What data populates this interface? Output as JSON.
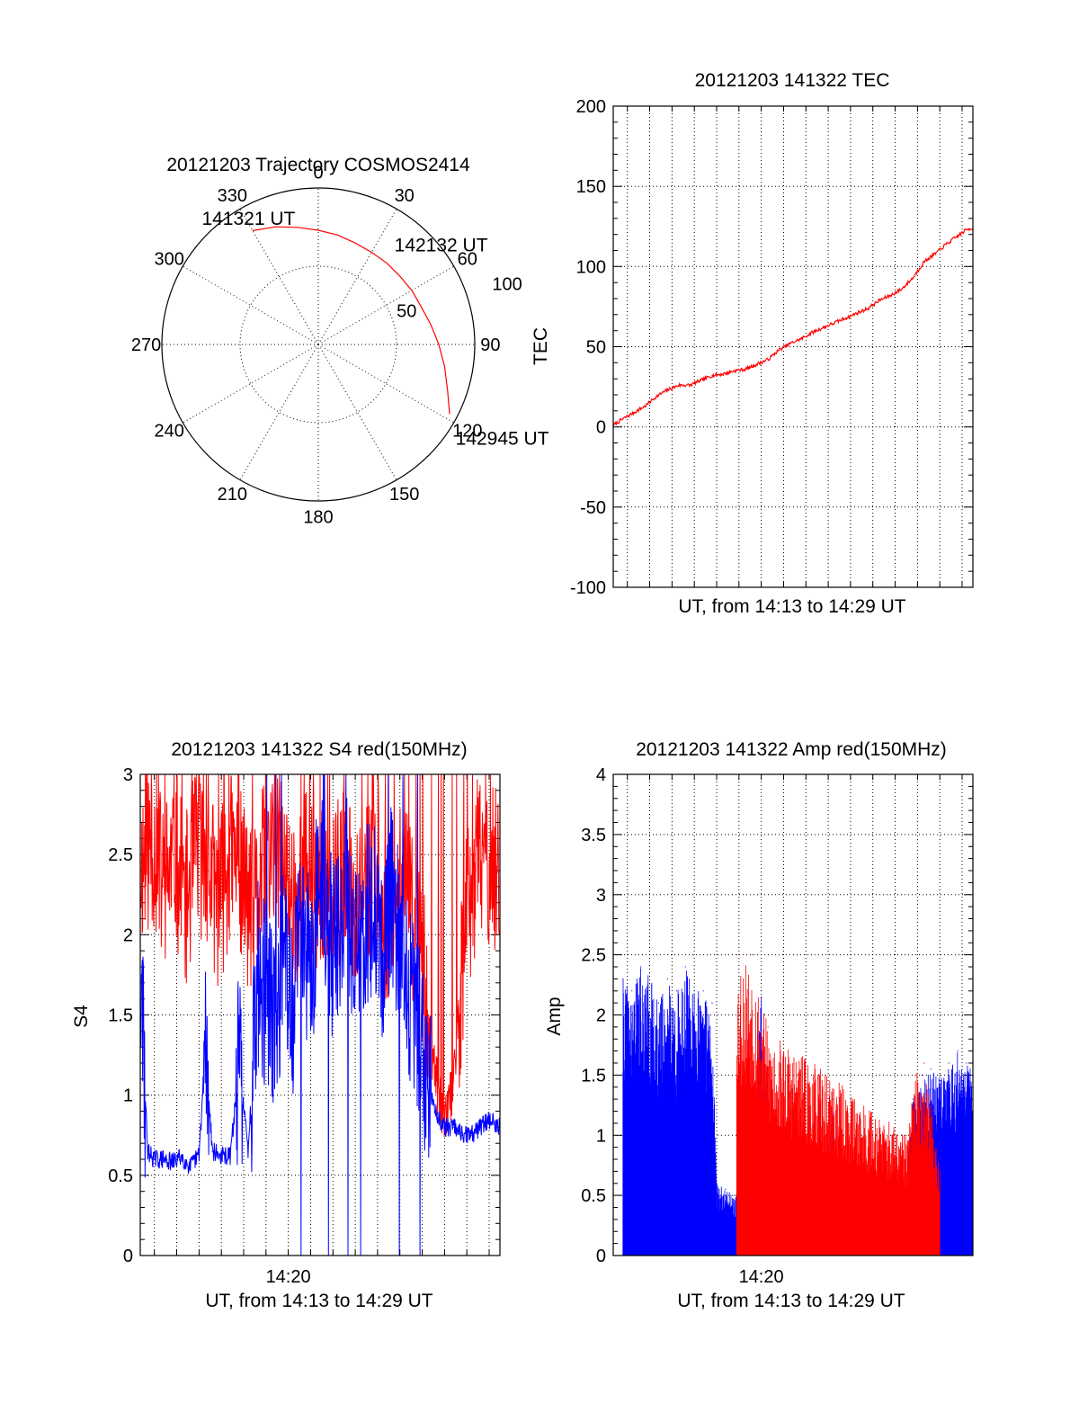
{
  "chart_data": [
    {
      "type": "polar",
      "title": "20121203 Trajectory COSMOS2414",
      "angle_labels": [
        "0",
        "30",
        "60",
        "90",
        "120",
        "150",
        "180",
        "210",
        "240",
        "270",
        "300",
        "330"
      ],
      "radial_ticks": [
        {
          "value": 50,
          "label": "50"
        },
        {
          "value": 100,
          "label": "100"
        }
      ],
      "rlim": [
        0,
        100
      ],
      "direction": "clockwise",
      "zero_at": "top",
      "grid": true,
      "series": [
        {
          "color": "#ff0000",
          "azimuth": [
            330,
            340,
            350,
            0,
            10,
            20,
            30,
            40,
            50,
            60,
            70,
            80,
            90,
            100,
            110,
            118
          ],
          "radius": [
            84,
            80,
            76,
            73,
            71,
            69,
            68,
            68,
            68,
            69,
            70,
            73,
            77,
            82,
            88,
            95
          ]
        }
      ],
      "annotations": [
        {
          "text": "141321 UT",
          "azimuth": 331,
          "radius": 92
        },
        {
          "text": "142132 UT",
          "azimuth": 51,
          "radius": 101
        },
        {
          "text": "142945 UT",
          "azimuth": 117,
          "radius": 132
        }
      ]
    },
    {
      "type": "line",
      "title": "20121203 141322 TEC",
      "xlabel": "UT, from 14:13 to 14:29 UT",
      "ylabel": "TEC",
      "xlim": [
        13.3667,
        29.4833
      ],
      "ylim": [
        -100,
        200
      ],
      "yticks": [
        -100,
        -50,
        0,
        50,
        100,
        150,
        200
      ],
      "ytick_labels": [
        "-100",
        "-50",
        "0",
        "50",
        "100",
        "150",
        "200"
      ],
      "grid": true,
      "series": [
        {
          "color": "#ff0000",
          "x": [
            13.37,
            13.8,
            14.3,
            14.8,
            15.3,
            15.8,
            16.3,
            16.8,
            17.3,
            17.8,
            18.3,
            18.8,
            19.3,
            19.8,
            20.3,
            20.8,
            21.3,
            21.8,
            22.3,
            22.8,
            23.3,
            23.8,
            24.3,
            24.8,
            25.3,
            25.8,
            26.3,
            26.8,
            27.3,
            27.8,
            28.3,
            28.8,
            29.2,
            29.48
          ],
          "y": [
            1,
            5,
            9,
            13,
            19,
            23,
            26,
            26,
            29,
            32,
            33,
            35,
            36,
            39,
            42,
            48,
            52,
            55,
            59,
            62,
            65,
            68,
            71,
            74,
            79,
            82,
            86,
            93,
            103,
            108,
            114,
            119,
            123,
            124
          ]
        }
      ]
    },
    {
      "type": "line",
      "title": "20121203 141322 S4 red(150MHz)",
      "xlabel": "UT, from 14:13 to 14:29 UT",
      "ylabel": "S4",
      "xlim": [
        13.3667,
        29.4833
      ],
      "ylim": [
        0,
        3
      ],
      "xticks": [
        20
      ],
      "xtick_labels": [
        "14:20"
      ],
      "yticks": [
        0,
        0.5,
        1,
        1.5,
        2,
        2.5,
        3
      ],
      "ytick_labels": [
        "0",
        "0.5",
        "1",
        "1.5",
        "2",
        "2.5",
        "3"
      ],
      "grid": true,
      "series": [
        {
          "color": "#ff0000",
          "x": [
            13.4,
            13.9,
            14.4,
            14.9,
            15.4,
            15.9,
            16.4,
            16.9,
            17.4,
            17.9,
            18.4,
            18.9,
            19.4,
            19.9,
            20.4,
            20.9,
            21.4,
            21.9,
            22.4,
            22.9,
            23.4,
            23.9,
            24.4,
            24.9,
            25.4,
            25.9,
            26.2,
            26.5,
            26.8,
            27.1,
            27.4,
            27.7,
            28.0,
            28.4,
            28.8,
            29.2,
            29.45
          ],
          "y": [
            2.45,
            2.6,
            2.3,
            2.5,
            2.2,
            2.55,
            2.4,
            2.2,
            2.5,
            2.35,
            2.1,
            2.4,
            2.6,
            2.3,
            2.2,
            2.45,
            2.3,
            2.1,
            2.4,
            2.2,
            2.35,
            2.25,
            2.1,
            2.3,
            2.2,
            1.95,
            1.6,
            1.2,
            0.95,
            0.85,
            1.1,
            1.6,
            2.1,
            2.4,
            2.55,
            2.35,
            2.5
          ]
        },
        {
          "color": "#0000ff",
          "x": [
            13.4,
            13.7,
            14.0,
            14.4,
            14.8,
            15.2,
            15.6,
            16.0,
            16.3,
            16.6,
            17.0,
            17.4,
            17.8,
            18.2,
            18.6,
            19.0,
            19.4,
            19.8,
            20.2,
            20.6,
            21.0,
            21.4,
            21.8,
            22.2,
            22.6,
            23.0,
            23.4,
            23.8,
            24.2,
            24.6,
            25.0,
            25.4,
            25.8,
            26.2,
            26.6,
            27.0,
            27.4,
            27.8,
            28.2,
            28.6,
            29.0,
            29.45
          ],
          "y": [
            1.6,
            0.65,
            0.6,
            0.6,
            0.58,
            0.62,
            0.55,
            0.63,
            1.3,
            0.65,
            0.62,
            0.62,
            1.2,
            0.65,
            1.8,
            1.6,
            1.4,
            1.9,
            1.5,
            2.2,
            1.7,
            2.5,
            1.9,
            2.0,
            2.3,
            1.8,
            2.1,
            2.2,
            1.9,
            2.3,
            2.0,
            1.7,
            1.4,
            1.1,
            0.9,
            0.8,
            0.8,
            0.75,
            0.75,
            0.8,
            0.85,
            0.8
          ]
        }
      ]
    },
    {
      "type": "line",
      "title": "20121203 141322 Amp red(150MHz)",
      "xlabel": "UT, from 14:13 to 14:29 UT",
      "ylabel": "Amp",
      "xlim": [
        13.3667,
        29.4833
      ],
      "ylim": [
        0,
        4
      ],
      "xticks": [
        20
      ],
      "xtick_labels": [
        "14:20"
      ],
      "yticks": [
        0,
        0.5,
        1,
        1.5,
        2,
        2.5,
        3,
        3.5,
        4
      ],
      "ytick_labels": [
        "0",
        "0.5",
        "1",
        "1.5",
        "2",
        "2.5",
        "3",
        "3.5",
        "4"
      ],
      "grid": true,
      "series": [
        {
          "color": "#0000ff",
          "x": [
            13.8,
            14.2,
            14.6,
            15.0,
            15.4,
            15.8,
            16.2,
            16.6,
            17.0,
            17.4,
            17.8,
            18.0,
            18.4,
            18.8,
            19.2,
            19.6,
            20.0,
            20.4,
            20.8,
            21.2,
            21.6,
            22.0,
            22.4,
            22.8,
            23.2,
            23.6,
            24.0,
            24.4,
            24.8,
            25.2,
            25.6,
            26.0,
            26.4,
            26.8,
            27.2,
            27.6,
            28.0,
            28.4,
            28.8,
            29.2,
            29.45
          ],
          "y": [
            2.3,
            2.2,
            2.4,
            2.35,
            2.1,
            2.3,
            2.2,
            2.4,
            2.2,
            2.2,
            2.1,
            0.6,
            0.55,
            0.5,
            0.6,
            0.8,
            2.2,
            0.6,
            0.55,
            0.5,
            0.55,
            0.5,
            1.3,
            0.5,
            1.3,
            0.5,
            0.55,
            0.45,
            0.5,
            0.4,
            0.45,
            0.5,
            0.45,
            1.3,
            1.5,
            1.55,
            1.5,
            1.6,
            1.7,
            1.6,
            1.6
          ]
        },
        {
          "color": "#ff0000",
          "x": [
            18.9,
            19.6,
            20.3,
            26.5,
            26.9,
            27.3,
            27.7,
            28.0
          ],
          "y": [
            2.5,
            2.5,
            1.9,
            1.0,
            1.5,
            1.6,
            1.2,
            0.8
          ]
        }
      ]
    }
  ]
}
